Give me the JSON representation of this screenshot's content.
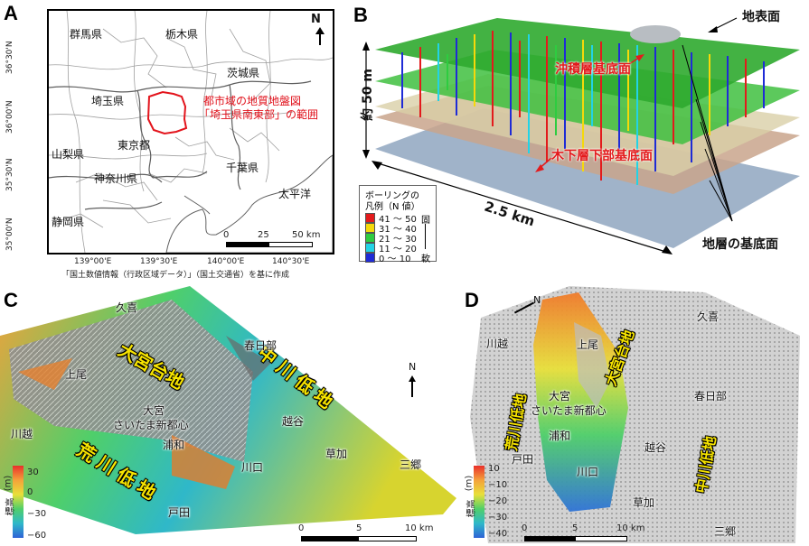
{
  "panels": {
    "a": {
      "label": "A",
      "prefectures": [
        "群馬県",
        "栃木県",
        "茨城県",
        "埼玉県",
        "東京都",
        "山梨県",
        "千葉県",
        "神奈川県",
        "静岡県"
      ],
      "sea": "太平洋",
      "area_label_line1": "都市域の地質地盤図",
      "area_label_line2": "「埼玉県南東部」の範囲",
      "lat_labels": [
        "36°30'N",
        "36°00'N",
        "35°30'N",
        "35°00'N"
      ],
      "lon_labels": [
        "139°00'E",
        "139°30'E",
        "140°00'E",
        "140°30'E"
      ],
      "scale_ticks": [
        "0",
        "25",
        "50 km"
      ],
      "north": "N",
      "source": "「国土数値情報（行政区域データ）」（国土交通省）を基に作成",
      "colors": {
        "boundary": "#9a9a9a",
        "area": "#e3141c"
      }
    },
    "b": {
      "label": "B",
      "surface": "地表面",
      "alluvium_base": "沖積層基底面",
      "kioroshi_base": "木下層下部基底面",
      "height": "約 50 m",
      "width": "2.5 km",
      "layer_bases": "地層の基底面",
      "legend": {
        "title_line1": "ボーリングの",
        "title_line2": "凡例（N 値）",
        "rows": [
          {
            "label": "41 ～ 50",
            "color": "#e31a1c"
          },
          {
            "label": "31 ～ 40",
            "color": "#f5d90a"
          },
          {
            "label": "21 ～ 30",
            "color": "#2ecc40"
          },
          {
            "label": "11 ～ 20",
            "color": "#22d3e6"
          },
          {
            "label": "0 ～ 10",
            "color": "#1f2bd6"
          }
        ],
        "hard": "固",
        "soft": "軟"
      }
    },
    "c": {
      "label": "C",
      "uplands": [
        "大宮台地"
      ],
      "lowlands": [
        "中川低地",
        "荒川低地"
      ],
      "places": [
        "久喜",
        "春日部",
        "上尾",
        "大宮",
        "さいたま新都心",
        "浦和",
        "越谷",
        "川越",
        "草加",
        "川口",
        "三郷",
        "戸田"
      ],
      "colorbar": {
        "title": "標高",
        "unit": "(m)",
        "ticks": [
          "30",
          "0",
          "−30",
          "−60"
        ]
      },
      "scale_ticks": [
        "0",
        "5",
        "10 km"
      ],
      "north": "N"
    },
    "d": {
      "label": "D",
      "uplands": [
        "大宮台地"
      ],
      "lowlands": [
        "荒川低地",
        "中川低地"
      ],
      "places": [
        "久喜",
        "川越",
        "上尾",
        "春日部",
        "大宮",
        "さいたま新都心",
        "浦和",
        "越谷",
        "戸田",
        "川口",
        "草加",
        "三郷"
      ],
      "colorbar": {
        "title": "標高",
        "unit": "(m)",
        "ticks": [
          "10",
          "−10",
          "−20",
          "−30",
          "−40"
        ]
      },
      "scale_ticks": [
        "0",
        "5",
        "10 km"
      ],
      "north": "N"
    }
  }
}
